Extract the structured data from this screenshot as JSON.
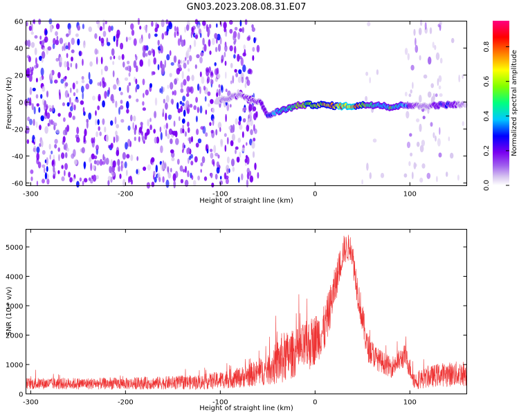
{
  "figure": {
    "title": "GN03.2023.208.08.31.E07"
  },
  "colors": {
    "snr_line": "#ee3333",
    "spectrogram_background": "#ffffff",
    "colormap": [
      "#ffffff",
      "#d9c8f0",
      "#a060ee",
      "#7a00f0",
      "#0000ff",
      "#00c8ff",
      "#00ff80",
      "#80ff00",
      "#ffff00",
      "#ff8000",
      "#ff0000",
      "#ff0080"
    ]
  },
  "chart_data": [
    {
      "type": "heatmap",
      "title": "GN03.2023.208.08.31.E07",
      "xlabel": "Height of straight line (km)",
      "ylabel": "Frequency (Hz)",
      "xlim": [
        -305,
        160
      ],
      "ylim": [
        -62,
        60
      ],
      "xticks": [
        -300,
        -200,
        -100,
        0,
        100
      ],
      "yticks": [
        60,
        40,
        20,
        0,
        -20,
        -40,
        -60
      ],
      "colorbar": {
        "label": "Normalized spectral amplitude",
        "range": [
          0.0,
          0.95
        ],
        "ticks": [
          "0.0",
          "0.2",
          "0.4",
          "0.6",
          "0.8"
        ]
      },
      "regions": [
        {
          "x_range": [
            -305,
            -60
          ],
          "f_range": [
            -62,
            60
          ],
          "noise_level": 0.13
        },
        {
          "x_range": [
            -60,
            45
          ],
          "f_range": [
            -62,
            60
          ],
          "noise_level": 0.0
        },
        {
          "x_range": [
            45,
            75
          ],
          "f_range": [
            -62,
            60
          ],
          "noise_level": 0.03
        },
        {
          "x_range": [
            95,
            135
          ],
          "f_range": [
            -62,
            60
          ],
          "noise_level": 0.06
        },
        {
          "x_range": [
            135,
            160
          ],
          "f_range": [
            -62,
            60
          ],
          "noise_level": 0.03
        }
      ],
      "signal_track": [
        {
          "x": -105,
          "f": 0,
          "amplitude": 0.1
        },
        {
          "x": -80,
          "f": 5,
          "amplitude": 0.2
        },
        {
          "x": -58,
          "f": 0,
          "amplitude": 0.25
        },
        {
          "x": -50,
          "f": -10,
          "amplitude": 0.3
        },
        {
          "x": -35,
          "f": -6,
          "amplitude": 0.5
        },
        {
          "x": -15,
          "f": -2,
          "amplitude": 0.6
        },
        {
          "x": 5,
          "f": -2,
          "amplitude": 0.75
        },
        {
          "x": 25,
          "f": -3,
          "amplitude": 0.85
        },
        {
          "x": 40,
          "f": -3,
          "amplitude": 0.9
        },
        {
          "x": 55,
          "f": -2,
          "amplitude": 0.6
        },
        {
          "x": 70,
          "f": -2,
          "amplitude": 0.45
        },
        {
          "x": 80,
          "f": -4,
          "amplitude": 0.6
        },
        {
          "x": 95,
          "f": -2,
          "amplitude": 0.4
        },
        {
          "x": 110,
          "f": -3,
          "amplitude": 0.15
        },
        {
          "x": 140,
          "f": -2,
          "amplitude": 0.35
        },
        {
          "x": 160,
          "f": -2,
          "amplitude": 0.1
        }
      ]
    },
    {
      "type": "line",
      "title": "",
      "xlabel": "Height of straight line (km)",
      "ylabel": "SNR (10 * v/v)",
      "xlim": [
        -305,
        160
      ],
      "ylim": [
        0,
        5600
      ],
      "xticks": [
        -300,
        -200,
        -100,
        0,
        100
      ],
      "yticks": [
        0,
        1000,
        2000,
        3000,
        4000,
        5000
      ],
      "series": [
        {
          "values_envelope": [
            {
              "x": -305,
              "base": 350,
              "spread": 200
            },
            {
              "x": -200,
              "base": 350,
              "spread": 200
            },
            {
              "x": -120,
              "base": 400,
              "spread": 250
            },
            {
              "x": -80,
              "base": 550,
              "spread": 350
            },
            {
              "x": -50,
              "base": 800,
              "spread": 500
            },
            {
              "x": -35,
              "base": 1200,
              "spread": 900
            },
            {
              "x": -20,
              "base": 1400,
              "spread": 800
            },
            {
              "x": -5,
              "base": 1700,
              "spread": 900
            },
            {
              "x": 10,
              "base": 2200,
              "spread": 800
            },
            {
              "x": 20,
              "base": 3500,
              "spread": 700
            },
            {
              "x": 30,
              "base": 4900,
              "spread": 500
            },
            {
              "x": 38,
              "base": 5000,
              "spread": 450
            },
            {
              "x": 45,
              "base": 3500,
              "spread": 600
            },
            {
              "x": 55,
              "base": 1600,
              "spread": 500
            },
            {
              "x": 65,
              "base": 1200,
              "spread": 400
            },
            {
              "x": 80,
              "base": 900,
              "spread": 350
            },
            {
              "x": 95,
              "base": 1300,
              "spread": 400
            },
            {
              "x": 105,
              "base": 450,
              "spread": 300
            },
            {
              "x": 130,
              "base": 650,
              "spread": 400
            },
            {
              "x": 160,
              "base": 700,
              "spread": 450
            }
          ]
        }
      ]
    }
  ]
}
